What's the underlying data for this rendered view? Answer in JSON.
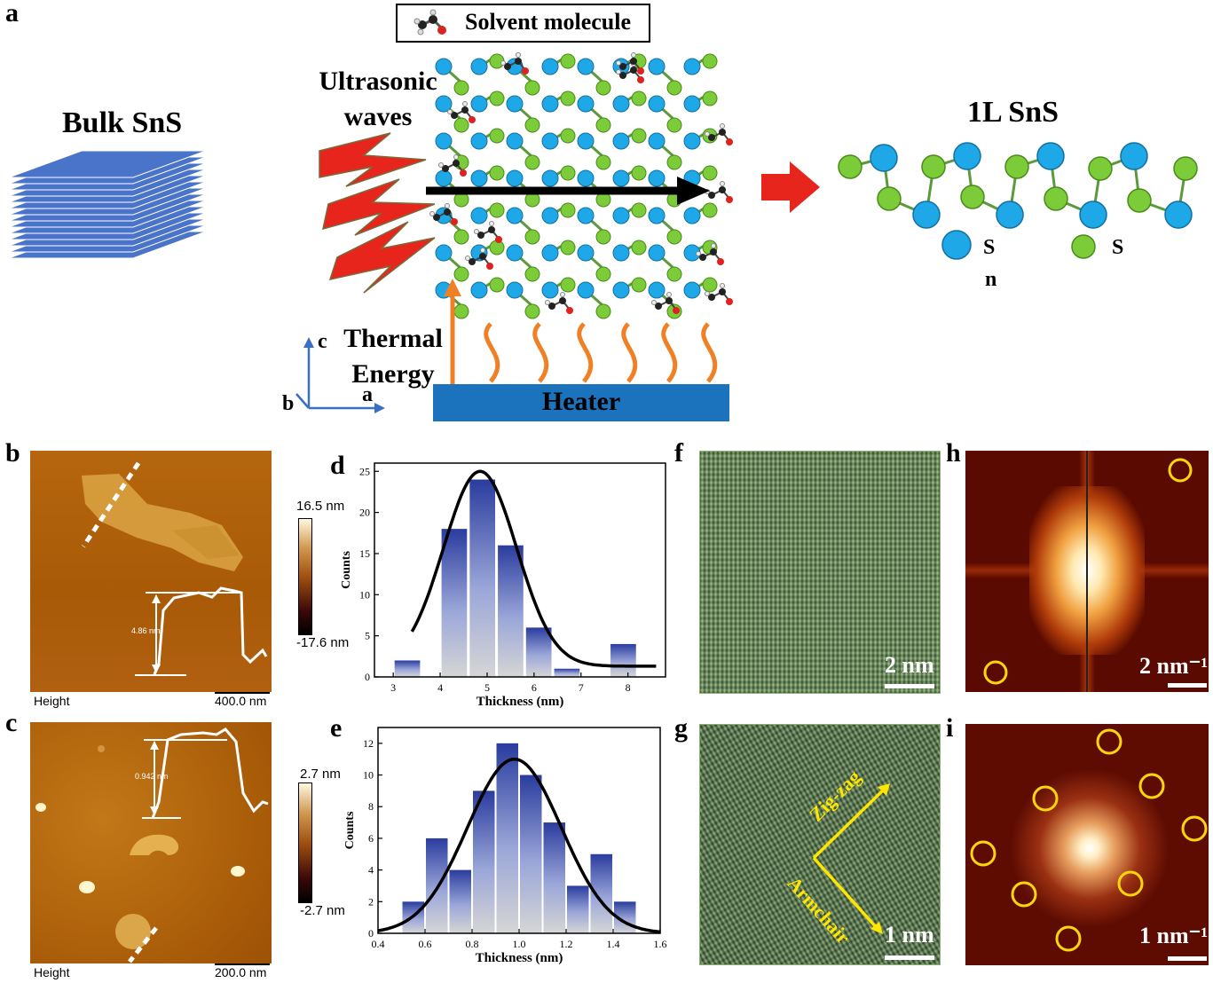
{
  "panel_labels": {
    "a": "a",
    "b": "b",
    "c": "c",
    "d": "d",
    "e": "e",
    "f": "f",
    "g": "g",
    "h": "h",
    "i": "i"
  },
  "schematic": {
    "legend_label": "Solvent molecule",
    "bulk_label": "Bulk SnS",
    "ultrasonic_label": "Ultrasonic waves",
    "thermal_label": "Thermal Energy",
    "heater_label": "Heater",
    "monolayer_label": "1L SnS",
    "legend_sn_letter": "S",
    "legend_sn_letter2": "n",
    "legend_s_letter": "S",
    "axis_c": "c",
    "axis_a": "a",
    "axis_b": "b",
    "colors": {
      "sn_atom": "#1ea8e8",
      "s_atom": "#7ccc3a",
      "arrow_red": "#e8251c",
      "heater": "#1c73bd",
      "stack": "#4a74c9",
      "wave": "#f08025"
    }
  },
  "afm_b": {
    "caption_left": "Height",
    "caption_right": "400.0 nm",
    "cbar_max": "16.5 nm",
    "cbar_min": "-17.6 nm",
    "profile_label": "4.86 nm"
  },
  "afm_c": {
    "caption_left": "Height",
    "caption_right": "200.0 nm",
    "cbar_max": "2.7 nm",
    "cbar_min": "-2.7 nm",
    "profile_label": "0.942 nm"
  },
  "hrtem_f": {
    "scale": "2 nm"
  },
  "hrtem_g": {
    "scale": "1 nm",
    "zigzag": "Zig-zag",
    "armchair": "Armchair"
  },
  "fft_h": {
    "scale": "2 nm⁻¹"
  },
  "fft_i": {
    "scale": "1 nm⁻¹"
  },
  "chart_data": [
    {
      "type": "bar",
      "panel": "d",
      "xlabel": "Thickness (nm)",
      "ylabel": "Counts",
      "xlim": [
        2.6,
        8.8
      ],
      "ylim": [
        0,
        26
      ],
      "xticks": [
        3,
        4,
        5,
        6,
        7,
        8
      ],
      "yticks": [
        0,
        5,
        10,
        15,
        20,
        25
      ],
      "bin_width": 0.58,
      "x": [
        3.3,
        4.3,
        4.9,
        5.5,
        6.1,
        6.7,
        7.9
      ],
      "values": [
        2,
        18,
        24,
        16,
        6,
        1,
        4
      ],
      "fit_curve": "gaussian",
      "fit": {
        "center": 4.85,
        "sigma": 0.78,
        "amplitude": 23.7,
        "baseline": 1.3,
        "x_range": [
          3.4,
          8.6
        ]
      }
    },
    {
      "type": "bar",
      "panel": "e",
      "xlabel": "Thickness (nm)",
      "ylabel": "Counts",
      "xlim": [
        0.4,
        1.6
      ],
      "ylim": [
        0,
        13
      ],
      "xticks": [
        0.4,
        0.6,
        0.8,
        1.0,
        1.2,
        1.4,
        1.6
      ],
      "yticks": [
        0,
        2,
        4,
        6,
        8,
        10,
        12
      ],
      "bin_width": 0.1,
      "x": [
        0.55,
        0.65,
        0.75,
        0.85,
        0.95,
        1.05,
        1.15,
        1.25,
        1.35,
        1.45
      ],
      "values": [
        2,
        6,
        4,
        9,
        12,
        10,
        7,
        3,
        5,
        2
      ],
      "fit_curve": "gaussian",
      "fit": {
        "center": 0.98,
        "sigma": 0.2,
        "amplitude": 11,
        "baseline": 0,
        "x_range": [
          0.4,
          1.6
        ]
      }
    }
  ]
}
